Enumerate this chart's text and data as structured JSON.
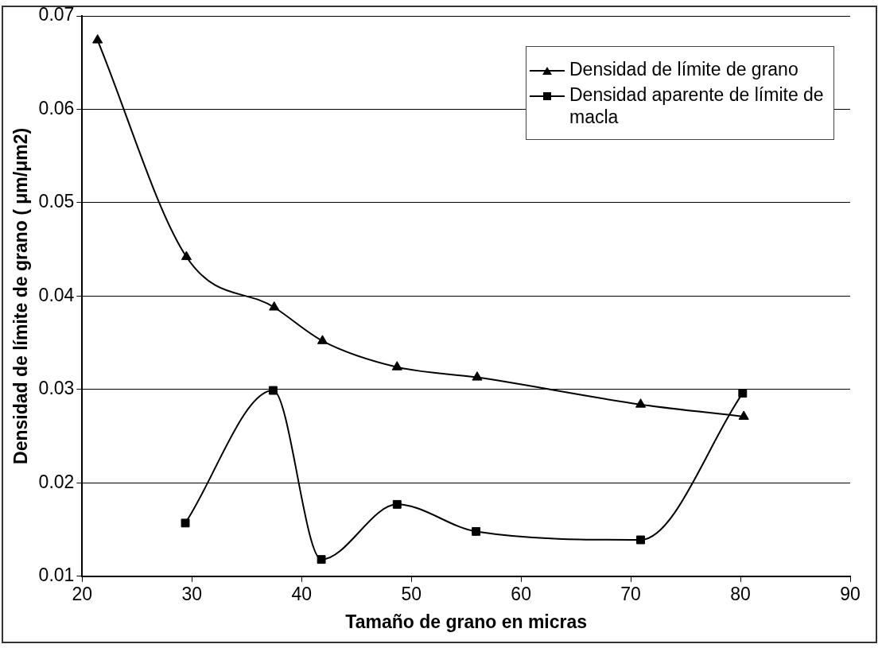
{
  "chart_data": {
    "type": "line",
    "xlabel": "Tamaño de grano en micras",
    "ylabel": "Densidad de límite de grano ( μm/μm2)",
    "xlim": [
      20,
      90
    ],
    "xticks": [
      20,
      30,
      40,
      50,
      60,
      70,
      80,
      90
    ],
    "ylim": [
      0.01,
      0.07
    ],
    "yticks": [
      0.01,
      0.02,
      0.03,
      0.04,
      0.05,
      0.06,
      0.07
    ],
    "grid": "y",
    "legend": "top right",
    "line_style": "solid",
    "series": [
      {
        "name": "Densidad de límite de grano",
        "color": "#000000",
        "marker": "triangle",
        "x": [
          21.4,
          29.5,
          37.5,
          41.9,
          48.7,
          56.0,
          70.9,
          80.3
        ],
        "values": [
          0.0674,
          0.0442,
          0.0388,
          0.0352,
          0.0324,
          0.0313,
          0.0284,
          0.0271
        ]
      },
      {
        "name": "Densidad aparente de límite de macla",
        "color": "#000000",
        "marker": "square",
        "x": [
          29.4,
          37.4,
          41.8,
          48.7,
          55.9,
          70.9,
          80.2
        ],
        "values": [
          0.0157,
          0.0299,
          0.0118,
          0.0177,
          0.0148,
          0.0139,
          0.0296
        ]
      }
    ]
  }
}
